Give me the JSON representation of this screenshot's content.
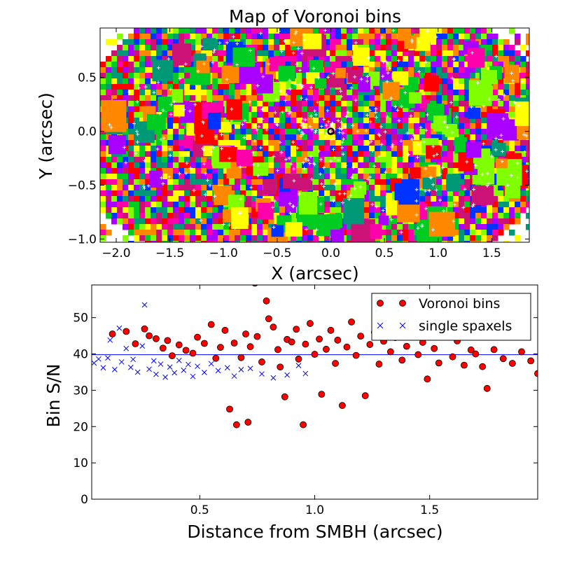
{
  "chart_data": [
    {
      "type": "heatmap",
      "title": "Map of Voronoi bins",
      "xlabel": "X (arcsec)",
      "ylabel": "Y (arcsec)",
      "xlim": [
        -2.15,
        1.85
      ],
      "ylim": [
        -1.03,
        0.96
      ],
      "xticks": [
        -2.0,
        -1.5,
        -1.0,
        -0.5,
        0.0,
        0.5,
        1.0,
        1.5
      ],
      "yticks": [
        -1.0,
        -0.5,
        0.0,
        0.5
      ],
      "xtick_labels": [
        "−2.0",
        "−1.5",
        "−1.0",
        "−0.5",
        "0.0",
        "0.5",
        "1.0",
        "1.5"
      ],
      "ytick_labels": [
        "−1.0",
        "−0.5",
        "0.0",
        "0.5"
      ],
      "grid": false,
      "palette": [
        "#ff0000",
        "#ffff00",
        "#00cc22",
        "#0033ff",
        "#ff00aa",
        "#7fff00",
        "#ff8800",
        "#009977",
        "#aa00ff",
        "#cc1177"
      ],
      "smbh_marker": {
        "x": 0.0,
        "y": 0.0,
        "label": "SMBH position (open circle)"
      }
    },
    {
      "type": "scatter",
      "title": "",
      "xlabel": "Distance from SMBH (arcsec)",
      "ylabel": "Bin S/N",
      "xlim": [
        0.03,
        1.97
      ],
      "ylim": [
        0,
        59
      ],
      "xticks": [
        0.5,
        1.0,
        1.5
      ],
      "yticks": [
        0,
        10,
        20,
        30,
        40,
        50
      ],
      "xtick_labels": [
        "0.5",
        "1.0",
        "1.5"
      ],
      "ytick_labels": [
        "0",
        "10",
        "20",
        "30",
        "40",
        "50"
      ],
      "target_line": {
        "y": 39.8,
        "color": "#0000ff"
      },
      "legend_position": "top-right",
      "series": [
        {
          "name": "Voronoi bins",
          "marker": "circle",
          "color": "#ff0000",
          "points": [
            [
              0.12,
              45.5
            ],
            [
              0.18,
              46.2
            ],
            [
              0.22,
              42.8
            ],
            [
              0.26,
              46.9
            ],
            [
              0.28,
              45.0
            ],
            [
              0.31,
              44.2
            ],
            [
              0.34,
              41.6
            ],
            [
              0.36,
              43.7
            ],
            [
              0.38,
              39.5
            ],
            [
              0.41,
              42.5
            ],
            [
              0.44,
              41.0
            ],
            [
              0.47,
              40.2
            ],
            [
              0.49,
              44.6
            ],
            [
              0.52,
              42.9
            ],
            [
              0.55,
              48.1
            ],
            [
              0.57,
              38.8
            ],
            [
              0.59,
              41.8
            ],
            [
              0.61,
              46.5
            ],
            [
              0.63,
              24.8
            ],
            [
              0.65,
              43.0
            ],
            [
              0.66,
              20.5
            ],
            [
              0.68,
              39.0
            ],
            [
              0.7,
              45.5
            ],
            [
              0.71,
              21.2
            ],
            [
              0.72,
              42.0
            ],
            [
              0.74,
              59.5
            ],
            [
              0.75,
              44.8
            ],
            [
              0.77,
              37.8
            ],
            [
              0.79,
              54.6
            ],
            [
              0.8,
              49.7
            ],
            [
              0.82,
              47.4
            ],
            [
              0.84,
              41.2
            ],
            [
              0.85,
              36.4
            ],
            [
              0.87,
              28.2
            ],
            [
              0.88,
              44.0
            ],
            [
              0.9,
              43.3
            ],
            [
              0.92,
              46.8
            ],
            [
              0.93,
              38.6
            ],
            [
              0.95,
              20.5
            ],
            [
              0.96,
              42.7
            ],
            [
              0.98,
              48.4
            ],
            [
              1.0,
              39.9
            ],
            [
              1.02,
              44.1
            ],
            [
              1.03,
              28.9
            ],
            [
              1.05,
              41.3
            ],
            [
              1.07,
              46.5
            ],
            [
              1.09,
              37.4
            ],
            [
              1.1,
              43.8
            ],
            [
              1.12,
              25.8
            ],
            [
              1.14,
              41.9
            ],
            [
              1.16,
              48.8
            ],
            [
              1.18,
              39.6
            ],
            [
              1.2,
              44.9
            ],
            [
              1.22,
              28.5
            ],
            [
              1.24,
              42.6
            ],
            [
              1.26,
              46.0
            ],
            [
              1.28,
              37.2
            ],
            [
              1.3,
              43.5
            ],
            [
              1.33,
              40.6
            ],
            [
              1.35,
              44.5
            ],
            [
              1.38,
              38.3
            ],
            [
              1.4,
              42.1
            ],
            [
              1.42,
              47.0
            ],
            [
              1.45,
              39.8
            ],
            [
              1.47,
              43.2
            ],
            [
              1.49,
              33.1
            ],
            [
              1.52,
              41.5
            ],
            [
              1.54,
              37.5
            ],
            [
              1.57,
              45.1
            ],
            [
              1.6,
              39.2
            ],
            [
              1.62,
              43.6
            ],
            [
              1.65,
              36.9
            ],
            [
              1.68,
              41.1
            ],
            [
              1.7,
              40.0
            ],
            [
              1.73,
              36.5
            ],
            [
              1.75,
              30.5
            ],
            [
              1.78,
              41.2
            ],
            [
              1.82,
              38.7
            ],
            [
              1.86,
              37.4
            ],
            [
              1.9,
              40.6
            ],
            [
              1.94,
              38.1
            ],
            [
              1.97,
              34.6
            ]
          ]
        },
        {
          "name": "single spaxels",
          "marker": "x",
          "color": "#0000ff",
          "points": [
            [
              0.04,
              37.5
            ],
            [
              0.06,
              38.6
            ],
            [
              0.08,
              36.2
            ],
            [
              0.1,
              38.9
            ],
            [
              0.11,
              43.8
            ],
            [
              0.13,
              35.7
            ],
            [
              0.15,
              47.1
            ],
            [
              0.16,
              37.8
            ],
            [
              0.18,
              41.5
            ],
            [
              0.2,
              36.3
            ],
            [
              0.21,
              38.5
            ],
            [
              0.23,
              35.0
            ],
            [
              0.25,
              42.2
            ],
            [
              0.26,
              53.5
            ],
            [
              0.28,
              35.8
            ],
            [
              0.3,
              38.1
            ],
            [
              0.31,
              34.4
            ],
            [
              0.33,
              37.2
            ],
            [
              0.35,
              33.6
            ],
            [
              0.37,
              36.4
            ],
            [
              0.39,
              34.8
            ],
            [
              0.41,
              38.2
            ],
            [
              0.43,
              35.5
            ],
            [
              0.45,
              37.1
            ],
            [
              0.47,
              33.8
            ],
            [
              0.49,
              36.6
            ],
            [
              0.52,
              34.9
            ],
            [
              0.55,
              37.3
            ],
            [
              0.58,
              35.4
            ],
            [
              0.62,
              36.2
            ],
            [
              0.65,
              33.9
            ],
            [
              0.68,
              35.7
            ],
            [
              0.72,
              36.0
            ],
            [
              0.77,
              34.5
            ],
            [
              0.82,
              33.4
            ],
            [
              0.88,
              34.2
            ],
            [
              0.93,
              36.8
            ],
            [
              0.96,
              34.6
            ]
          ]
        }
      ]
    }
  ]
}
